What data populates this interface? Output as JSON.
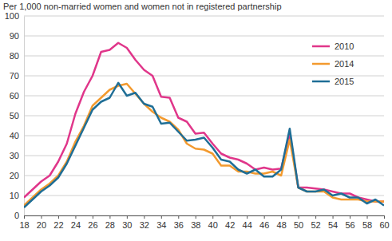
{
  "chart_data": {
    "type": "line",
    "y_label": "Per 1,000 non-married women and women not in registered partnership",
    "x": [
      18,
      19,
      20,
      21,
      22,
      23,
      24,
      25,
      26,
      27,
      28,
      29,
      30,
      31,
      32,
      33,
      34,
      35,
      36,
      37,
      38,
      39,
      40,
      41,
      42,
      43,
      44,
      45,
      46,
      47,
      48,
      49,
      50,
      51,
      52,
      53,
      54,
      55,
      56,
      57,
      58,
      59,
      60
    ],
    "series": [
      {
        "name": "2010",
        "color": "#e0368a",
        "values": [
          9,
          13,
          17,
          20,
          27,
          36,
          51,
          62,
          70,
          82,
          83,
          86.5,
          84,
          78,
          73,
          70,
          59.5,
          59,
          49,
          47,
          41,
          41.5,
          36,
          31,
          29,
          28,
          26,
          23,
          24,
          23,
          23.5,
          41,
          14,
          14,
          13.5,
          13,
          12,
          11,
          11,
          9,
          8,
          7,
          7
        ]
      },
      {
        "name": "2014",
        "color": "#f39a2e",
        "values": [
          5,
          9,
          13,
          16,
          20,
          27,
          37,
          45,
          55,
          59,
          63,
          65,
          66,
          61,
          56,
          52,
          49,
          47,
          43,
          36,
          33.5,
          33,
          31,
          25,
          25,
          22,
          22,
          21,
          21,
          22,
          20,
          38,
          14,
          12,
          12,
          12,
          9,
          8,
          8,
          8,
          7,
          7,
          7
        ]
      },
      {
        "name": "2015",
        "color": "#1f6e96",
        "values": [
          4,
          8,
          12,
          15,
          19,
          26,
          35,
          44,
          53,
          57,
          59,
          66.5,
          60,
          61.5,
          56,
          54.5,
          46,
          46.5,
          42,
          37.5,
          38,
          39,
          34,
          28,
          27,
          23,
          21,
          23,
          19.5,
          19.5,
          23,
          43.5,
          14,
          12,
          12,
          13,
          10,
          11,
          9,
          9,
          6,
          8,
          5
        ]
      }
    ],
    "xlim": [
      18,
      60
    ],
    "xticks": [
      18,
      20,
      22,
      24,
      26,
      28,
      30,
      32,
      34,
      36,
      38,
      40,
      42,
      44,
      46,
      48,
      50,
      52,
      54,
      56,
      58,
      60
    ],
    "ylim": [
      0,
      100
    ],
    "yticks": [
      0,
      10,
      20,
      30,
      40,
      50,
      60,
      70,
      80,
      90,
      100
    ],
    "grid": true,
    "legend": "upper right"
  }
}
